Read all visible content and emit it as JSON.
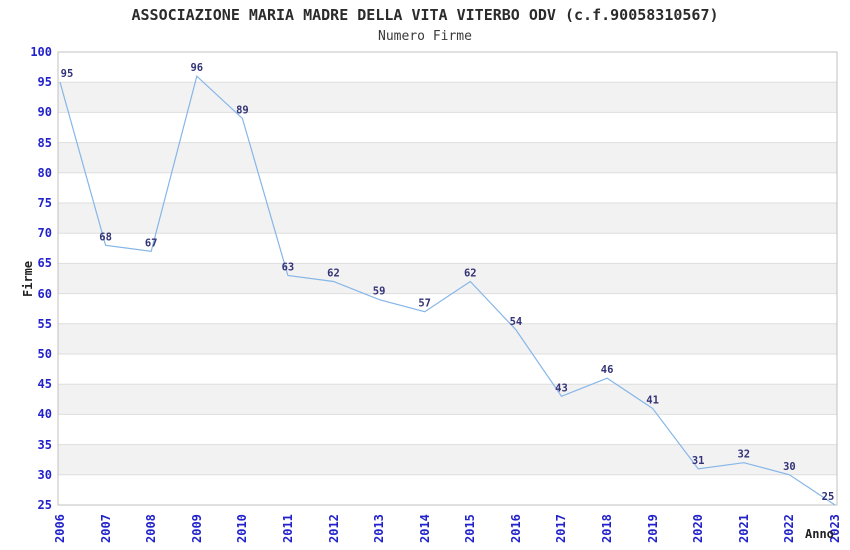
{
  "header": {
    "title": "ASSOCIAZIONE MARIA MADRE DELLA VITA VITERBO ODV (c.f.90058310567)",
    "subtitle": "Numero Firme"
  },
  "chart_data": {
    "type": "line",
    "title": "ASSOCIAZIONE MARIA MADRE DELLA VITA VITERBO ODV (c.f.90058310567)",
    "subtitle": "Numero Firme",
    "categories": [
      "2006",
      "2007",
      "2008",
      "2009",
      "2010",
      "2011",
      "2012",
      "2013",
      "2014",
      "2015",
      "2016",
      "2017",
      "2018",
      "2019",
      "2020",
      "2021",
      "2022",
      "2023"
    ],
    "values": [
      95,
      68,
      67,
      96,
      89,
      63,
      62,
      59,
      57,
      62,
      54,
      43,
      46,
      41,
      31,
      32,
      30,
      25
    ],
    "xlabel": "Anno",
    "ylabel": "Firme",
    "ylim": [
      25,
      100
    ],
    "ytick_step": 5,
    "grid": true,
    "legend_position": "none",
    "band_fill": "alternating",
    "colors": {
      "line": "#86b6e8",
      "tick_label": "#2222cc",
      "data_label": "#333377",
      "band": "#f2f2f2",
      "gridline": "#dedede",
      "plot_border": "#c0c0c0",
      "background": "#ffffff"
    }
  }
}
